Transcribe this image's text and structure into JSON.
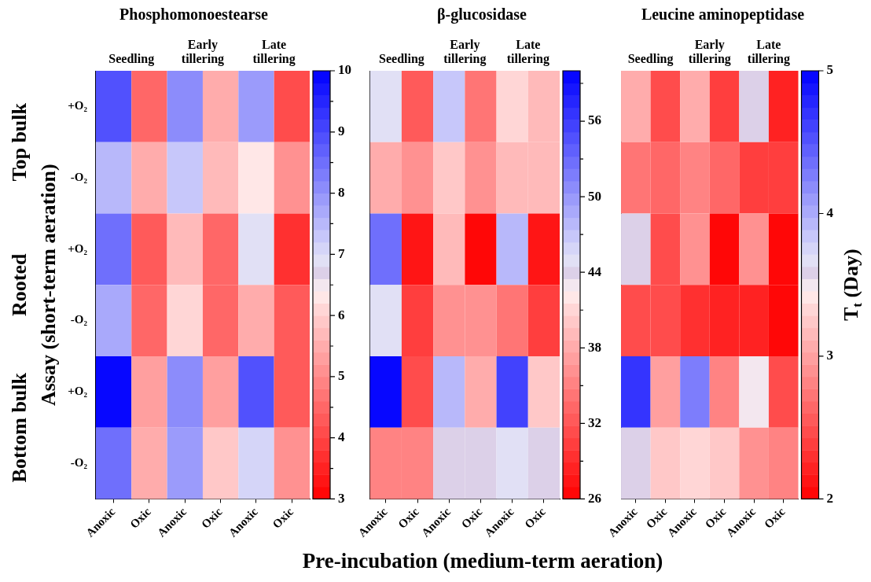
{
  "chart_data": [
    {
      "type": "heatmap",
      "title": "Phosphomonoestearse",
      "ylabel": "Assay (short-term aeration)",
      "categories": [
        "Anoxic",
        "Oxic",
        "Anoxic",
        "Oxic",
        "Anoxic",
        "Oxic"
      ],
      "y_categories": [
        "+O₂",
        "-O₂",
        "+O₂",
        "-O₂",
        "+O₂",
        "-O₂"
      ],
      "cells": [
        [
          8.8,
          4.5,
          8.0,
          5.5,
          7.8,
          4.0
        ],
        [
          7.5,
          5.5,
          7.2,
          5.7,
          6.3,
          5.0
        ],
        [
          8.4,
          4.2,
          5.8,
          4.5,
          6.9,
          3.8
        ],
        [
          7.6,
          4.4,
          6.0,
          4.6,
          5.6,
          4.2
        ],
        [
          10,
          5.3,
          8.2,
          5.2,
          8.8,
          4.2
        ],
        [
          8.6,
          5.5,
          7.8,
          5.9,
          7.1,
          5.0
        ]
      ],
      "clim": [
        3,
        10
      ],
      "cticks": [
        3,
        {
          "value": 3.5,
          "label": null
        },
        4,
        {
          "value": 4.5,
          "label": null
        },
        5,
        {
          "value": 5.5,
          "label": null
        },
        6,
        {
          "value": 6.5,
          "label": null
        },
        7,
        {
          "value": 7.5,
          "label": null
        },
        8,
        {
          "value": 8.5,
          "label": null
        },
        9,
        {
          "value": 9.5,
          "label": null
        },
        10
      ],
      "annotations": [
        "Seedling",
        "Early tillering",
        "Late tillering",
        "Top bulk",
        "Rooted",
        "Bottom bulk"
      ]
    },
    {
      "type": "heatmap",
      "title": "β-glucosidase",
      "xlabel": "Pre-incubation (medium-term aeration)",
      "categories": [
        "Anoxic",
        "Oxic",
        "Anoxic",
        "Oxic",
        "Anoxic",
        "Oxic"
      ],
      "y_categories": [
        null,
        null,
        null,
        null,
        null,
        null
      ],
      "cells": [
        [
          45,
          32,
          47,
          34,
          41,
          39
        ],
        [
          38,
          36,
          40,
          36,
          39,
          39
        ],
        [
          53,
          27,
          39,
          26,
          48,
          27
        ],
        [
          45,
          30,
          36,
          36,
          34,
          30
        ],
        [
          60,
          31,
          48,
          38,
          56,
          40
        ],
        [
          35,
          35,
          44,
          44,
          45,
          44
        ]
      ],
      "clim": [
        26,
        60
      ],
      "cticks": [
        26,
        {
          "value": 29,
          "label": null
        },
        32,
        {
          "value": 35,
          "label": null
        },
        38,
        {
          "value": 41,
          "label": null
        },
        44,
        {
          "value": 47,
          "label": null
        },
        50,
        {
          "value": 53,
          "label": null
        },
        56,
        {
          "value": 59,
          "label": null
        }
      ],
      "tick_labels": "x",
      "annotations": [
        "Seedling",
        "Early tillering",
        "Late tillering"
      ]
    },
    {
      "type": "heatmap",
      "title": "Leucine aminopeptidase",
      "clabel": "T$_{t}$ (Day)",
      "categories": [
        "Anoxic",
        "Oxic",
        "Anoxic",
        "Oxic",
        "Anoxic",
        "Oxic"
      ],
      "y_categories": [
        null,
        null,
        null,
        null,
        null,
        null
      ],
      "cells": [
        [
          3.1,
          2.5,
          3.1,
          2.4,
          3.6,
          2.2
        ],
        [
          2.7,
          2.6,
          2.8,
          2.6,
          2.4,
          2.4
        ],
        [
          3.6,
          2.5,
          2.9,
          2.05,
          2.9,
          2.0
        ],
        [
          2.5,
          2.5,
          2.3,
          2.2,
          2.2,
          2.0
        ],
        [
          4.7,
          3.0,
          4.3,
          2.8,
          3.5,
          2.5
        ],
        [
          3.6,
          3.2,
          3.3,
          3.2,
          2.9,
          2.8
        ]
      ],
      "clim": [
        2,
        5
      ],
      "cticks": [
        2,
        3,
        4,
        5
      ],
      "tick_labels": "x",
      "annotations": [
        "Seedling",
        "Early tillering",
        "Late tillering"
      ]
    }
  ]
}
